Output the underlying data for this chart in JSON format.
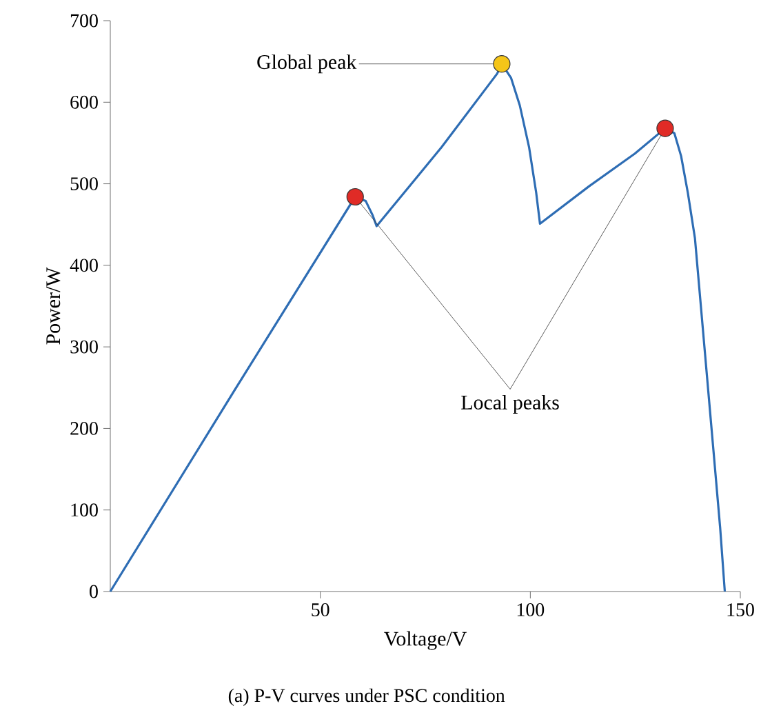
{
  "chart_data": {
    "type": "line",
    "xlabel": "Voltage/V",
    "ylabel": "Power/W",
    "xlim": [
      0,
      150
    ],
    "xticks": [
      50,
      100,
      150
    ],
    "ylim": [
      0,
      700
    ],
    "yticks": [
      0,
      100,
      200,
      300,
      400,
      500,
      600,
      700
    ],
    "series": [
      {
        "color": "#2e6db4",
        "x": [
          0,
          29.6,
          58.3,
          60.8,
          62.5,
          63.4,
          78.9,
          92.1,
          93.2,
          95.4,
          97.5,
          99.7,
          101.4,
          102.3,
          114,
          124.9,
          132.1,
          134.3,
          135.9,
          137.5,
          139.2,
          141.4,
          143.6,
          145.2,
          146.3
        ],
        "values": [
          0,
          247,
          484,
          479,
          461,
          448,
          545,
          635,
          647,
          630,
          596,
          545,
          489,
          451,
          497,
          537,
          568,
          562,
          534,
          489,
          433,
          303,
          173,
          78,
          0
        ]
      },
      {
        "type": "scatter",
        "marker": "circle",
        "x": [
          58.3,
          93.2,
          132.1
        ],
        "values": [
          484,
          647,
          568
        ],
        "colors": [
          "#e02b26",
          "#f5c518",
          "#e02b26"
        ]
      }
    ],
    "annotations": [
      {
        "text": "Global peak",
        "x": 93.2,
        "y": 647
      },
      {
        "text": "Local peaks",
        "x": 58.3,
        "y": 484
      },
      "(a) P-V curves under PSC condition"
    ]
  }
}
